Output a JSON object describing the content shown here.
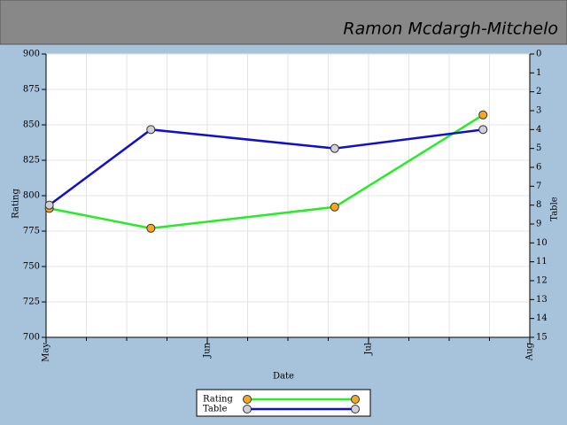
{
  "chart_data": {
    "type": "line",
    "title": "Ramon Mcdargh-Mitchelo",
    "x_label": "Date",
    "y_label": "Rating",
    "y2_label": "Table",
    "x": [
      0.02,
      0.65,
      1.79,
      2.71
    ],
    "xlim": [
      0,
      3
    ],
    "xticks": [
      {
        "value": 0,
        "label": "May"
      },
      {
        "value": 1,
        "label": "Jun"
      },
      {
        "value": 2,
        "label": "Jul"
      },
      {
        "value": 3,
        "label": "Aug"
      }
    ],
    "xminorticks": [
      0.25,
      0.5,
      0.75,
      1.25,
      1.5,
      1.75,
      2.25,
      2.5,
      2.75
    ],
    "ylim": [
      700,
      900
    ],
    "yticks": [
      700,
      725,
      750,
      775,
      800,
      825,
      850,
      875,
      900
    ],
    "y2lim": [
      15,
      0
    ],
    "y2ticks": [
      0,
      1,
      2,
      3,
      4,
      5,
      6,
      7,
      8,
      9,
      10,
      11,
      12,
      13,
      14,
      15
    ],
    "grid": true,
    "legend": "bottom",
    "series": [
      {
        "name": "Rating",
        "color": "#22ee22",
        "marker_color": "#f5a623",
        "values": [
          791,
          777,
          792,
          857
        ]
      },
      {
        "name": "Table",
        "color": "#1010cc",
        "marker_color": "#d0d0d8",
        "axis": "y2",
        "values": [
          8,
          4,
          5,
          4
        ]
      }
    ]
  }
}
